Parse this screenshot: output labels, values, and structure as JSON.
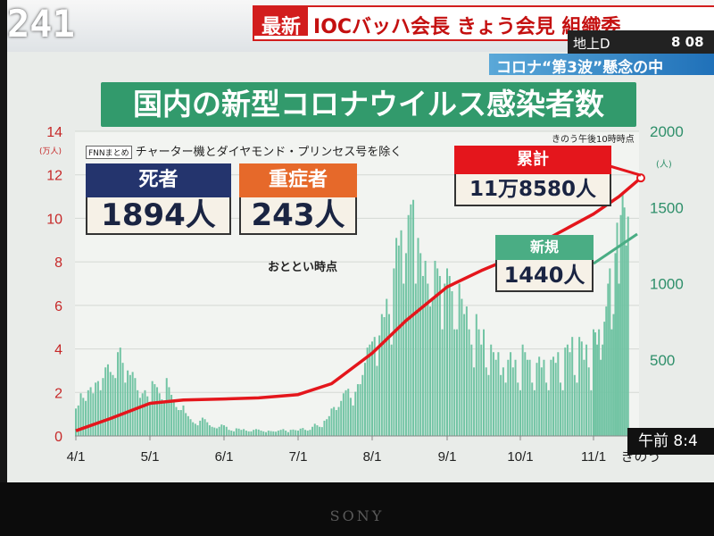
{
  "screen": {
    "clock": "241",
    "headline_badge": "最新",
    "headline_text": "IOCバッハ会長 きょう会見 組織委 ",
    "channel": "地上D",
    "channel_number": "8 08",
    "sub_banner": "コロナ“第3波”懸念の中"
  },
  "chart_title": "国内の新型コロナウイルス感染者数",
  "note": {
    "tag": "FNNまとめ",
    "text": "チャーター機とダイヤモンド・プリンセス号を除く"
  },
  "asof_top": "きのう午後10時時点",
  "deaths": {
    "label": "死者",
    "value": "1894人"
  },
  "severe": {
    "label": "重症者",
    "value": "243人",
    "asof": "おととい時点"
  },
  "cumulative": {
    "label": "累計",
    "value": "11万8580人"
  },
  "new_cases": {
    "label": "新規",
    "value": "1440人"
  },
  "time_label": "午前 8:4",
  "brand": "SONY",
  "colors": {
    "title_green": "#329a6c",
    "bar_green": "#72c4a4",
    "line_red": "#e4161c",
    "deaths_blue": "#24346d",
    "severe_orange": "#e6692a",
    "axis_red": "#c62828",
    "axis_green": "#2e8f6a"
  },
  "chart_data": {
    "type": "bar+line",
    "title": "国内の新型コロナウイルス感染者数",
    "x_ticks": [
      "4/1",
      "5/1",
      "6/1",
      "7/1",
      "8/1",
      "9/1",
      "10/1",
      "11/1",
      "きのう"
    ],
    "left_axis": {
      "unit": "(万人)",
      "ticks": [
        0,
        2,
        4,
        6,
        8,
        10,
        12,
        14
      ],
      "range": [
        0,
        14
      ]
    },
    "right_axis": {
      "unit": "(人)",
      "ticks": [
        500,
        1000,
        1500,
        2000
      ],
      "range": [
        0,
        2000
      ]
    },
    "series": [
      {
        "name": "新規",
        "type": "bar",
        "axis": "right",
        "x_start": "4/1",
        "values": [
          180,
          200,
          280,
          250,
          230,
          300,
          320,
          280,
          350,
          360,
          300,
          380,
          450,
          470,
          420,
          400,
          380,
          550,
          580,
          480,
          350,
          430,
          400,
          420,
          380,
          300,
          250,
          280,
          300,
          260,
          220,
          360,
          340,
          320,
          280,
          240,
          220,
          380,
          320,
          270,
          230,
          190,
          170,
          170,
          200,
          150,
          130,
          110,
          90,
          80,
          70,
          100,
          120,
          110,
          90,
          70,
          60,
          55,
          50,
          60,
          75,
          70,
          60,
          40,
          35,
          30,
          50,
          48,
          40,
          45,
          35,
          30,
          30,
          40,
          45,
          42,
          35,
          30,
          25,
          35,
          32,
          30,
          28,
          35,
          40,
          45,
          35,
          25,
          40,
          42,
          38,
          35,
          48,
          52,
          40,
          35,
          40,
          60,
          80,
          70,
          60,
          58,
          100,
          110,
          130,
          180,
          190,
          170,
          190,
          230,
          280,
          300,
          310,
          250,
          200,
          290,
          340,
          340,
          400,
          480,
          580,
          600,
          620,
          650,
          460,
          660,
          800,
          780,
          900,
          800,
          600,
          1100,
          1300,
          1250,
          1350,
          1000,
          1200,
          1450,
          1520,
          1550,
          1000,
          1300,
          1200,
          1050,
          1150,
          1000,
          850,
          900,
          1150,
          1100,
          1050,
          700,
          1000,
          1100,
          1050,
          950,
          700,
          700,
          1000,
          900,
          800,
          850,
          700,
          600,
          450,
          800,
          700,
          600,
          700,
          450,
          400,
          600,
          550,
          500,
          550,
          400,
          450,
          350,
          500,
          550,
          450,
          500,
          350,
          300,
          600,
          550,
          500,
          500,
          350,
          300,
          480,
          520,
          450,
          500,
          350,
          300,
          500,
          520,
          480,
          550,
          350,
          300,
          580,
          600,
          550,
          650,
          400,
          350,
          650,
          620,
          500,
          600,
          450,
          300,
          700,
          680,
          600,
          700,
          500,
          600,
          750,
          850,
          1000,
          1100,
          700,
          800,
          1200,
          1400,
          1000,
          1450,
          1600,
          1500,
          1250,
          1440
        ]
      },
      {
        "name": "累計",
        "type": "line",
        "axis": "left",
        "points": [
          {
            "x": "4/1",
            "y": 0.24
          },
          {
            "x": "4/15",
            "y": 0.8
          },
          {
            "x": "5/1",
            "y": 1.5
          },
          {
            "x": "5/15",
            "y": 1.65
          },
          {
            "x": "6/1",
            "y": 1.7
          },
          {
            "x": "6/15",
            "y": 1.75
          },
          {
            "x": "7/1",
            "y": 1.9
          },
          {
            "x": "7/15",
            "y": 2.4
          },
          {
            "x": "8/1",
            "y": 3.8
          },
          {
            "x": "8/15",
            "y": 5.3
          },
          {
            "x": "9/1",
            "y": 6.85
          },
          {
            "x": "9/15",
            "y": 7.6
          },
          {
            "x": "10/1",
            "y": 8.35
          },
          {
            "x": "10/15",
            "y": 9.2
          },
          {
            "x": "11/1",
            "y": 10.2
          },
          {
            "x": "11/15",
            "y": 11.0
          },
          {
            "x": "きのう",
            "y": 11.858
          }
        ]
      }
    ]
  }
}
